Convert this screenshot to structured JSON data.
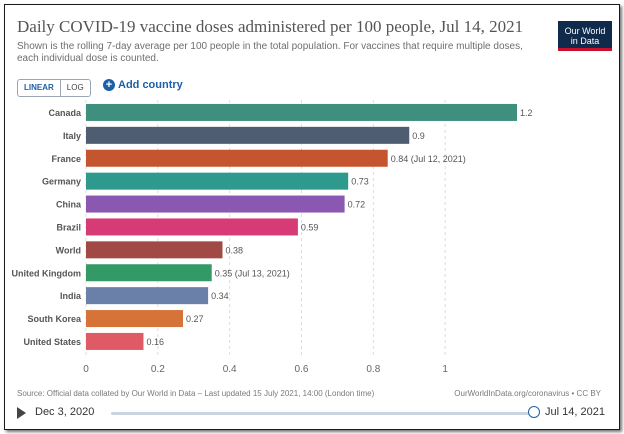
{
  "header": {
    "title": "Daily COVID-19 vaccine doses administered per 100 people, Jul 14, 2021",
    "subtitle": "Shown is the rolling 7-day average per 100 people in the total population. For vaccines that require multiple doses, each individual dose is counted.",
    "logo_line1": "Our World",
    "logo_line2": "in Data"
  },
  "controls": {
    "linear_label": "LINEAR",
    "log_label": "LOG",
    "add_country_label": "Add country"
  },
  "chart_data": {
    "type": "bar",
    "orientation": "horizontal",
    "title": "Daily COVID-19 vaccine doses administered per 100 people, Jul 14, 2021",
    "xlim": [
      0,
      1.2
    ],
    "xticks": [
      0,
      0.2,
      0.4,
      0.6,
      0.8,
      1
    ],
    "grid": true,
    "categories": [
      "Canada",
      "Italy",
      "France",
      "Germany",
      "China",
      "Brazil",
      "World",
      "United Kingdom",
      "India",
      "South Korea",
      "United States"
    ],
    "values": [
      1.2,
      0.9,
      0.84,
      0.73,
      0.72,
      0.59,
      0.38,
      0.35,
      0.34,
      0.27,
      0.16
    ],
    "value_labels": [
      "1.2",
      "0.9",
      "0.84 (Jul 12, 2021)",
      "0.73",
      "0.72",
      "0.59",
      "0.38",
      "0.35 (Jul 13, 2021)",
      "0.34",
      "0.27",
      "0.16"
    ],
    "colors": [
      "#3f8f7e",
      "#4f5d73",
      "#c4552f",
      "#2e9a8e",
      "#8a57b1",
      "#d63b76",
      "#a14a45",
      "#339966",
      "#6a80a8",
      "#d57338",
      "#e05a66"
    ]
  },
  "footer": {
    "source": "Source: Official data collated by Our World in Data – Last updated 15 July 2021, 14:00 (London time)",
    "link": "OurWorldInData.org/coronavirus • CC BY"
  },
  "timeline": {
    "start_label": "Dec 3, 2020",
    "end_label": "Jul 14, 2021",
    "position_fraction": 1.0
  }
}
